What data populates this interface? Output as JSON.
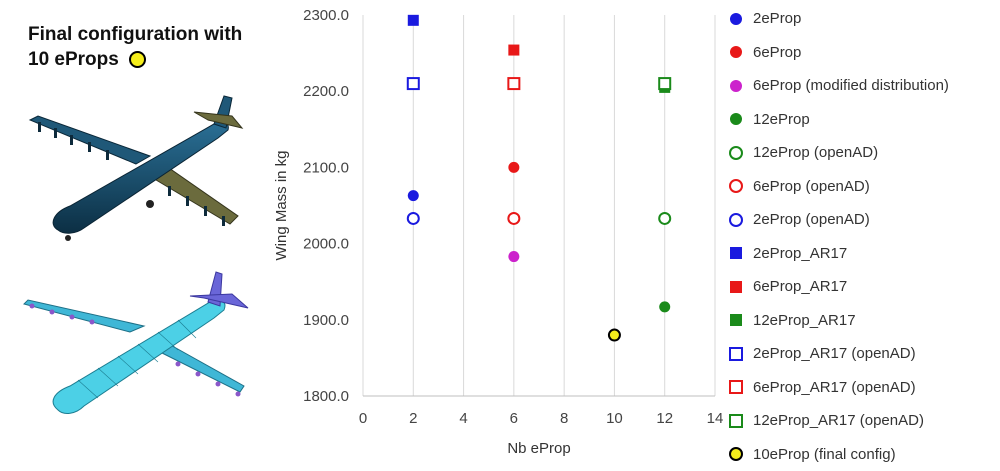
{
  "caption": {
    "line1": "Final configuration with",
    "line2": "10 eProps"
  },
  "chart_data": {
    "type": "scatter",
    "xlabel": "Nb eProp",
    "ylabel": "Wing Mass in kg",
    "xlim": [
      0,
      14
    ],
    "ylim": [
      1800,
      2300
    ],
    "xticks": [
      0,
      2,
      4,
      6,
      8,
      10,
      12,
      14
    ],
    "yticks": [
      1800,
      1900,
      2000,
      2100,
      2200,
      2300
    ],
    "xtick_labels": [
      "0",
      "2",
      "4",
      "6",
      "8",
      "10",
      "12",
      "14"
    ],
    "ytick_labels": [
      "1800.0",
      "1900.0",
      "2000.0",
      "2100.0",
      "2200.0",
      "2300.0"
    ],
    "grid": "vertical",
    "legend_position": "right",
    "series": [
      {
        "name": "2eProp",
        "marker": "circle",
        "filled": true,
        "color": "#1a1adf",
        "points": [
          [
            2,
            2063
          ]
        ]
      },
      {
        "name": "6eProp",
        "marker": "circle",
        "filled": true,
        "color": "#e81818",
        "points": [
          [
            6,
            2100
          ]
        ]
      },
      {
        "name": "6eProp (modified distribution)",
        "marker": "circle",
        "filled": true,
        "color": "#cc22cc",
        "points": [
          [
            6,
            1983
          ]
        ]
      },
      {
        "name": "12eProp",
        "marker": "circle",
        "filled": true,
        "color": "#1a8a1a",
        "points": [
          [
            12,
            1917
          ]
        ]
      },
      {
        "name": "12eProp (openAD)",
        "marker": "circle",
        "filled": false,
        "color": "#1a8a1a",
        "points": [
          [
            12,
            2033
          ]
        ]
      },
      {
        "name": "6eProp (openAD)",
        "marker": "circle",
        "filled": false,
        "color": "#e81818",
        "points": [
          [
            6,
            2033
          ]
        ]
      },
      {
        "name": "2eProp (openAD)",
        "marker": "circle",
        "filled": false,
        "color": "#1a1adf",
        "points": [
          [
            2,
            2033
          ]
        ]
      },
      {
        "name": "2eProp_AR17",
        "marker": "square",
        "filled": true,
        "color": "#1a1adf",
        "points": [
          [
            2,
            2293
          ]
        ]
      },
      {
        "name": "6eProp_AR17",
        "marker": "square",
        "filled": true,
        "color": "#e81818",
        "points": [
          [
            6,
            2254
          ]
        ]
      },
      {
        "name": "12eProp_AR17",
        "marker": "square",
        "filled": true,
        "color": "#1a8a1a",
        "points": [
          [
            12,
            2205
          ]
        ]
      },
      {
        "name": "2eProp_AR17 (openAD)",
        "marker": "square",
        "filled": false,
        "color": "#1a1adf",
        "points": [
          [
            2,
            2210
          ]
        ]
      },
      {
        "name": "6eProp_AR17 (openAD)",
        "marker": "square",
        "filled": false,
        "color": "#e81818",
        "points": [
          [
            6,
            2210
          ]
        ]
      },
      {
        "name": "12eProp_AR17 (openAD)",
        "marker": "square",
        "filled": false,
        "color": "#1a8a1a",
        "points": [
          [
            12,
            2210
          ]
        ]
      },
      {
        "name": "10eProp (final config)",
        "marker": "circle",
        "filled": true,
        "color": "#f5ee1c",
        "edge": "#000000",
        "points": [
          [
            10,
            1880
          ]
        ]
      }
    ]
  }
}
